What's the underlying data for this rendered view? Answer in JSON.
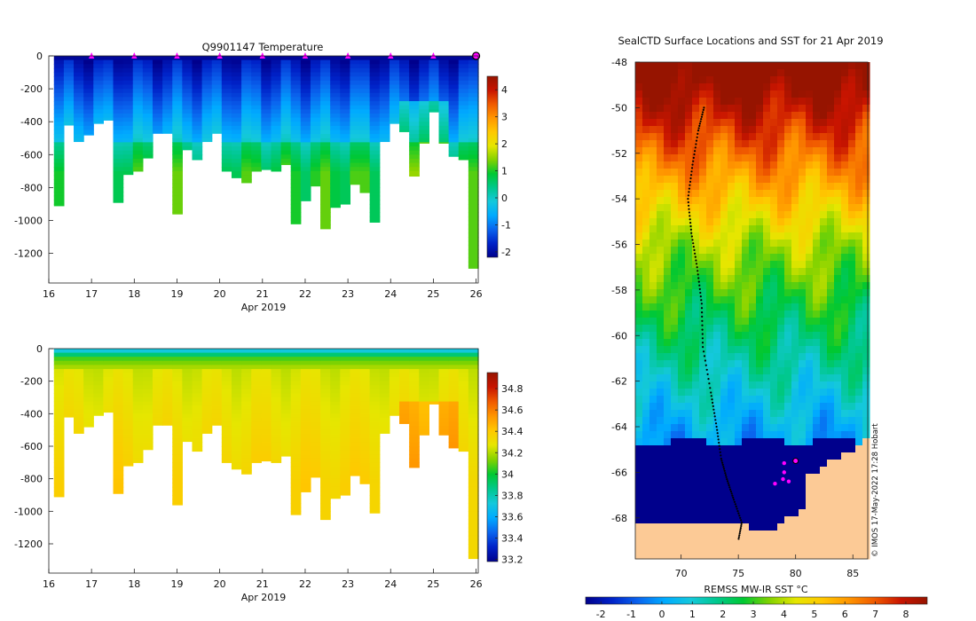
{
  "charts": [
    {
      "type": "heatmap",
      "title": "Q9901147  Temperature",
      "xlabel": "Apr 2019",
      "xticks": [
        "16",
        "17",
        "18",
        "19",
        "20",
        "21",
        "22",
        "23",
        "24",
        "25",
        "26"
      ],
      "yticks": [
        "0",
        "-200",
        "-400",
        "-600",
        "-800",
        "-1000",
        "-1200"
      ],
      "ylim": [
        -1380,
        0
      ],
      "xlim": [
        16,
        26.05
      ],
      "cbar_ticks": [
        "4",
        "3",
        "2",
        "1",
        "0",
        "-1",
        "-2"
      ],
      "cbar_range": [
        -2.2,
        4.5
      ],
      "palette": [
        "#00008c",
        "#0022c8",
        "#0a64ee",
        "#00aaff",
        "#14c8dc",
        "#00c88c",
        "#00c832",
        "#82d200",
        "#e6e600",
        "#ffc800",
        "#ff9600",
        "#f05a00",
        "#c81400",
        "#961400"
      ],
      "profile_depths": [
        910,
        420,
        520,
        480,
        410,
        390,
        890,
        720,
        700,
        620,
        470,
        470,
        960,
        570,
        630,
        520,
        470,
        700,
        740,
        770,
        700,
        690,
        700,
        660,
        1020,
        880,
        790,
        1050,
        920,
        900,
        780,
        830,
        1010,
        520,
        410,
        460,
        730,
        530,
        340,
        530,
        610,
        630,
        1290
      ]
    },
    {
      "type": "heatmap",
      "title": "",
      "xlabel": "Apr 2019",
      "xticks": [
        "16",
        "17",
        "18",
        "19",
        "20",
        "21",
        "22",
        "23",
        "24",
        "25",
        "26"
      ],
      "yticks": [
        "0",
        "-200",
        "-400",
        "-600",
        "-800",
        "-1000",
        "-1200"
      ],
      "ylim": [
        -1380,
        0
      ],
      "xlim": [
        16,
        26.05
      ],
      "cbar_ticks": [
        "34.8",
        "34.6",
        "34.4",
        "34.2",
        "34",
        "33.8",
        "33.6",
        "33.4",
        "33.2"
      ],
      "cbar_range": [
        33.18,
        34.95
      ],
      "palette": [
        "#00008c",
        "#0022c8",
        "#0a64ee",
        "#00aaff",
        "#14c8dc",
        "#00c88c",
        "#00c832",
        "#82d200",
        "#e6e600",
        "#ffc800",
        "#ff9600",
        "#f05a00",
        "#c81400",
        "#961400"
      ]
    },
    {
      "type": "heatmap",
      "title": "SealCTD Surface Locations and SST for 21 Apr 2019",
      "xticks": [
        "70",
        "75",
        "80",
        "85"
      ],
      "yticks": [
        "-48",
        "-50",
        "-52",
        "-54",
        "-56",
        "-58",
        "-60",
        "-62",
        "-64",
        "-66",
        "-68"
      ],
      "lon_range": [
        66,
        86.3
      ],
      "lat_range": [
        -69.8,
        -48
      ],
      "colorbar_label": "REMSS MW-IR SST °C",
      "colorbar_ticks": [
        "-2",
        "-1",
        "0",
        "1",
        "2",
        "3",
        "4",
        "5",
        "6",
        "7",
        "8"
      ],
      "colorbar_range": [
        -2.5,
        8.7
      ],
      "credit": "© IMOS 17-May-2022 17:28 Hobart",
      "track": [
        [
          72.0,
          -50.0
        ],
        [
          71.5,
          -51.0
        ],
        [
          71.0,
          -52.5
        ],
        [
          70.6,
          -54.0
        ],
        [
          70.9,
          -55.5
        ],
        [
          71.4,
          -57.0
        ],
        [
          71.8,
          -58.6
        ],
        [
          71.9,
          -60.5
        ],
        [
          72.6,
          -62.5
        ],
        [
          73.1,
          -64.0
        ],
        [
          73.5,
          -65.4
        ],
        [
          74.0,
          -66.3
        ],
        [
          74.6,
          -67.2
        ],
        [
          75.3,
          -68.2
        ],
        [
          75.0,
          -69.0
        ]
      ],
      "markers": [
        [
          79.0,
          -65.6
        ],
        [
          80.0,
          -65.5
        ],
        [
          78.2,
          -66.5
        ],
        [
          78.9,
          -66.3
        ],
        [
          79.4,
          -66.4
        ],
        [
          79.0,
          -66.0
        ]
      ]
    }
  ]
}
